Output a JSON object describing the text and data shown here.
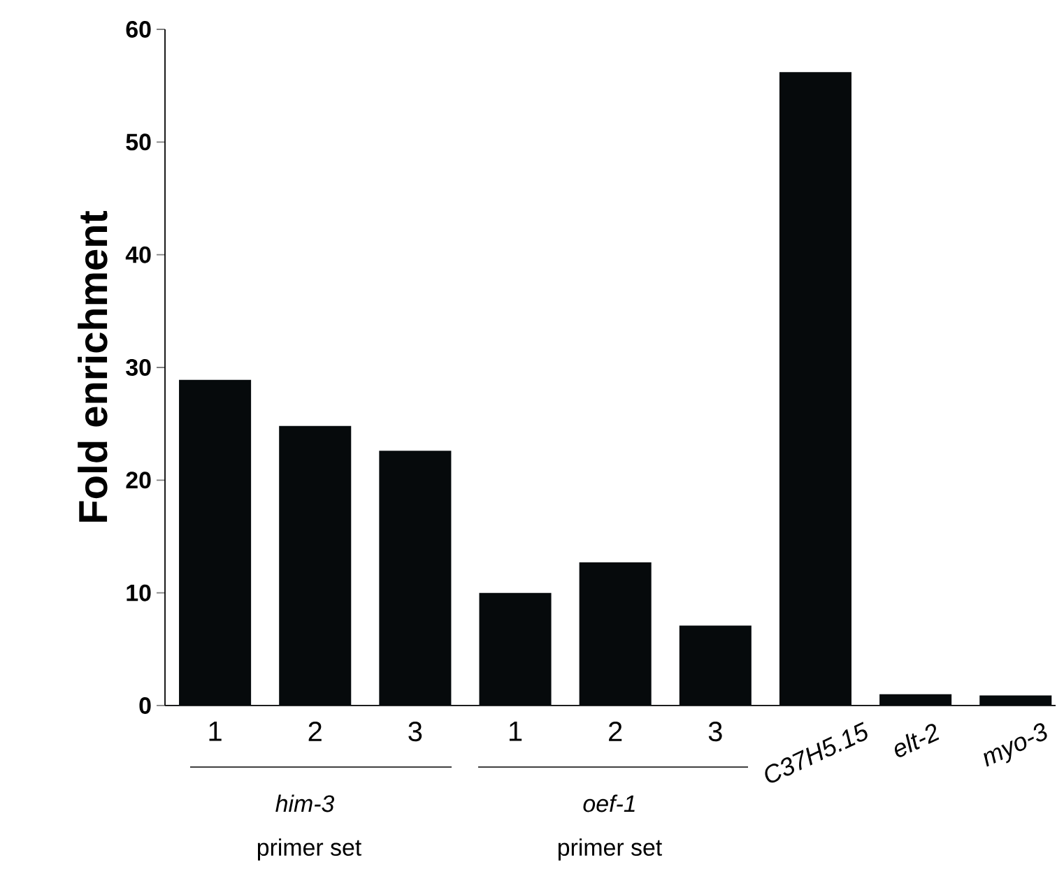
{
  "chart_data": {
    "type": "bar",
    "ylabel": "Fold enrichment",
    "categories": [
      "1",
      "2",
      "3",
      "1",
      "2",
      "3",
      "C37H5.15",
      "elt-2",
      "myo-3"
    ],
    "values": [
      28.9,
      24.8,
      22.6,
      10.0,
      12.7,
      7.1,
      56.2,
      1.0,
      0.9
    ],
    "color": "#060a0c",
    "ylim": [
      0,
      60
    ],
    "yticks": [
      0,
      10,
      20,
      30,
      40,
      50,
      60
    ],
    "annotations": [
      "him-3",
      "primer set",
      "oef-1",
      "primer set"
    ]
  }
}
